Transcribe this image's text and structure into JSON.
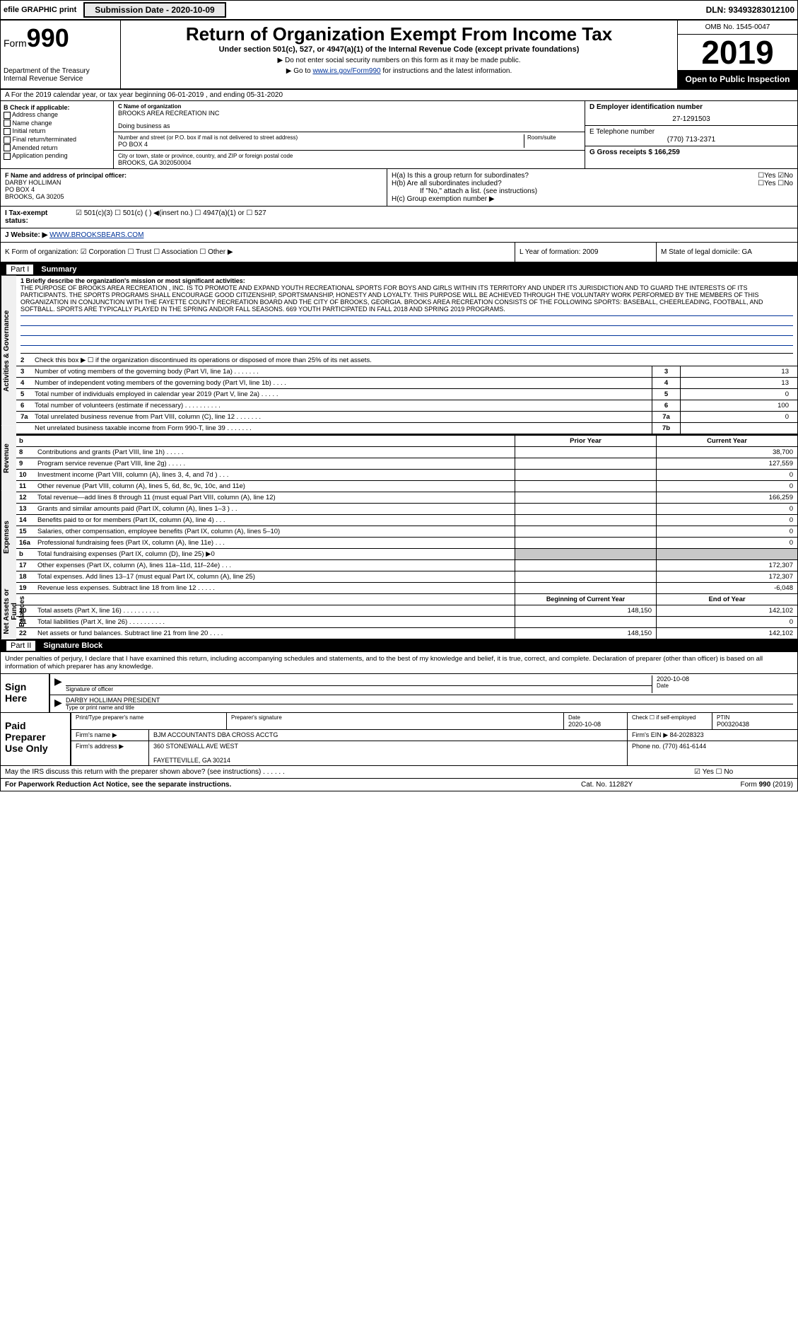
{
  "topbar": {
    "efile_text": "efile GRAPHIC print",
    "submission_btn": "Submission Date - 2020-10-09",
    "dln": "DLN: 93493283012100"
  },
  "header": {
    "form_prefix": "Form",
    "form_num": "990",
    "title": "Return of Organization Exempt From Income Tax",
    "subtitle": "Under section 501(c), 527, or 4947(a)(1) of the Internal Revenue Code (except private foundations)",
    "arrow1": "▶ Do not enter social security numbers on this form as it may be made public.",
    "arrow2_pre": "▶ Go to ",
    "arrow2_link": "www.irs.gov/Form990",
    "arrow2_post": " for instructions and the latest information.",
    "dept": "Department of the Treasury\nInternal Revenue Service",
    "omb": "OMB No. 1545-0047",
    "year": "2019",
    "open": "Open to Public Inspection"
  },
  "row_a": {
    "text": "A For the 2019 calendar year, or tax year beginning 06-01-2019    , and ending 05-31-2020"
  },
  "col_b": {
    "label": "B Check if applicable:",
    "items": [
      "Address change",
      "Name change",
      "Initial return",
      "Final return/terminated",
      "Amended return",
      "Application pending"
    ]
  },
  "col_c": {
    "name_lbl": "C Name of organization",
    "name": "BROOKS AREA RECREATION INC",
    "dba_lbl": "Doing business as",
    "dba": "",
    "addr_lbl": "Number and street (or P.O. box if mail is not delivered to street address)",
    "room_lbl": "Room/suite",
    "addr": "PO BOX 4",
    "city_lbl": "City or town, state or province, country, and ZIP or foreign postal code",
    "city": "BROOKS, GA  302050004"
  },
  "col_de": {
    "d_lbl": "D Employer identification number",
    "d_val": "27-1291503",
    "e_lbl": "E Telephone number",
    "e_val": "(770) 713-2371",
    "g_lbl": "G Gross receipts $ 166,259"
  },
  "row_f": {
    "f_lbl": "F  Name and address of principal officer:",
    "f_val": "DARBY HOLLIMAN\nPO BOX 4\nBROOKS, GA  30205",
    "ha_lbl": "H(a)  Is this a group return for subordinates?",
    "ha_yn": "☐Yes ☑No",
    "hb_lbl": "H(b)  Are all subordinates included?",
    "hb_yn": "☐Yes ☐No",
    "hb_note": "If \"No,\" attach a list. (see instructions)",
    "hc_lbl": "H(c)   Group exemption number ▶"
  },
  "row_i": {
    "lbl": "I   Tax-exempt status:",
    "opts": "☑  501(c)(3)    ☐   501(c) (   ) ◀(insert no.)    ☐  4947(a)(1) or   ☐  527"
  },
  "row_j": {
    "lbl": "J   Website: ▶ ",
    "val": "WWW.BROOKSBEARS.COM"
  },
  "row_k": {
    "k_lbl": "K Form of organization:  ☑ Corporation  ☐ Trust  ☐ Association  ☐ Other ▶",
    "l_lbl": "L Year of formation: 2009",
    "m_lbl": "M State of legal domicile: GA"
  },
  "part1": {
    "num": "Part I",
    "title": "Summary"
  },
  "mission": {
    "lbl": "1  Briefly describe the organization's mission or most significant activities:",
    "text": "THE PURPOSE OF BROOKS AREA RECREATION , INC. IS TO PROMOTE AND EXPAND YOUTH RECREATIONAL SPORTS FOR BOYS AND GIRLS WITHIN ITS TERRITORY AND UNDER ITS JURISDICTION AND TO GUARD THE INTERESTS OF ITS PARTICIPANTS. THE SPORTS PROGRAMS SHALL ENCOURAGE GOOD CITIZENSHIP, SPORTSMANSHIP, HONESTY AND LOYALTY. THIS PURPOSE WILL BE ACHIEVED THROUGH THE VOLUNTARY WORK PERFORMED BY THE MEMBERS OF THIS ORGANIZATION IN CONJUNCTION WITH THE FAYETTE COUNTY RECREATION BOARD AND THE CITY OF BROOKS, GEORGIA. BROOKS AREA RECREATION CONSISTS OF THE FOLLOWING SPORTS: BASEBALL, CHEERLEADING, FOOTBALL, AND SOFTBALL. SPORTS ARE TYPICALLY PLAYED IN THE SPRING AND/OR FALL SEASONS. 669 YOUTH PARTICIPATED IN FALL 2018 AND SPRING 2019 PROGRAMS."
  },
  "gov_lines": [
    {
      "n": "2",
      "t": "Check this box ▶ ☐ if the organization discontinued its operations or disposed of more than 25% of its net assets.",
      "box": "",
      "val": ""
    },
    {
      "n": "3",
      "t": "Number of voting members of the governing body (Part VI, line 1a)  .    .    .    .    .    .    .",
      "box": "3",
      "val": "13"
    },
    {
      "n": "4",
      "t": "Number of independent voting members of the governing body (Part VI, line 1b)   .    .    .    .",
      "box": "4",
      "val": "13"
    },
    {
      "n": "5",
      "t": "Total number of individuals employed in calendar year 2019 (Part V, line 2a)   .    .    .    .    .",
      "box": "5",
      "val": "0"
    },
    {
      "n": "6",
      "t": "Total number of volunteers (estimate if necessary)   .    .    .    .    .    .    .    .    .    .",
      "box": "6",
      "val": "100"
    },
    {
      "n": "7a",
      "t": "Total unrelated business revenue from Part VIII, column (C), line 12  .    .    .    .    .    .    .",
      "box": "7a",
      "val": "0"
    },
    {
      "n": "",
      "t": "Net unrelated business taxable income from Form 990-T, line 39   .    .    .    .    .    .    .",
      "box": "7b",
      "val": ""
    }
  ],
  "col_headers": {
    "c1": "Prior Year",
    "c2": "Current Year"
  },
  "rev_lines": [
    {
      "n": "8",
      "t": "Contributions and grants (Part VIII, line 1h)   .    .    .    .    .",
      "c1": "",
      "c2": "38,700"
    },
    {
      "n": "9",
      "t": "Program service revenue (Part VIII, line 2g)   .    .    .    .    .",
      "c1": "",
      "c2": "127,559"
    },
    {
      "n": "10",
      "t": "Investment income (Part VIII, column (A), lines 3, 4, and 7d )   .    .    .",
      "c1": "",
      "c2": "0"
    },
    {
      "n": "11",
      "t": "Other revenue (Part VIII, column (A), lines 5, 6d, 8c, 9c, 10c, and 11e)",
      "c1": "",
      "c2": "0"
    },
    {
      "n": "12",
      "t": "Total revenue—add lines 8 through 11 (must equal Part VIII, column (A), line 12)",
      "c1": "",
      "c2": "166,259"
    }
  ],
  "exp_lines": [
    {
      "n": "13",
      "t": "Grants and similar amounts paid (Part IX, column (A), lines 1–3 )  .    .",
      "c1": "",
      "c2": "0"
    },
    {
      "n": "14",
      "t": "Benefits paid to or for members (Part IX, column (A), line 4)  .    .    .",
      "c1": "",
      "c2": "0"
    },
    {
      "n": "15",
      "t": "Salaries, other compensation, employee benefits (Part IX, column (A), lines 5–10)",
      "c1": "",
      "c2": "0"
    },
    {
      "n": "16a",
      "t": "Professional fundraising fees (Part IX, column (A), line 11e)   .    .    .",
      "c1": "",
      "c2": "0"
    },
    {
      "n": "b",
      "t": "Total fundraising expenses (Part IX, column (D), line 25) ▶0",
      "c1": "grey",
      "c2": "grey"
    },
    {
      "n": "17",
      "t": "Other expenses (Part IX, column (A), lines 11a–11d, 11f–24e)   .    .    .",
      "c1": "",
      "c2": "172,307"
    },
    {
      "n": "18",
      "t": "Total expenses. Add lines 13–17 (must equal Part IX, column (A), line 25)",
      "c1": "",
      "c2": "172,307"
    },
    {
      "n": "19",
      "t": "Revenue less expenses. Subtract line 18 from line 12  .    .    .    .    .",
      "c1": "",
      "c2": "-6,048"
    }
  ],
  "net_headers": {
    "c1": "Beginning of Current Year",
    "c2": "End of Year"
  },
  "net_lines": [
    {
      "n": "20",
      "t": "Total assets (Part X, line 16)  .    .    .    .    .    .    .    .    .    .",
      "c1": "148,150",
      "c2": "142,102"
    },
    {
      "n": "21",
      "t": "Total liabilities (Part X, line 26)  .    .    .    .    .    .    .    .    .    .",
      "c1": "",
      "c2": "0"
    },
    {
      "n": "22",
      "t": "Net assets or fund balances. Subtract line 21 from line 20  .    .    .    .",
      "c1": "148,150",
      "c2": "142,102"
    }
  ],
  "part2": {
    "num": "Part II",
    "title": "Signature Block"
  },
  "sig_penalty": "Under penalties of perjury, I declare that I have examined this return, including accompanying schedules and statements, and to the best of my knowledge and belief, it is true, correct, and complete. Declaration of preparer (other than officer) is based on all information of which preparer has any knowledge.",
  "sign_here": "Sign Here",
  "sig_officer_lbl": "Signature of officer",
  "sig_date_lbl": "Date",
  "sig_date": "2020-10-08",
  "sig_name": "DARBY HOLLIMAN  PRESIDENT",
  "sig_name_lbl": "Type or print name and title",
  "paid_prep": "Paid Preparer Use Only",
  "prep": {
    "name_lbl": "Print/Type preparer's name",
    "sig_lbl": "Preparer's signature",
    "date_lbl": "Date",
    "date": "2020-10-08",
    "check_lbl": "Check ☐ if self-employed",
    "ptin_lbl": "PTIN",
    "ptin": "P00320438",
    "firm_name_lbl": "Firm's name    ▶",
    "firm_name": "BJM ACCOUNTANTS DBA CROSS ACCTG",
    "firm_ein_lbl": "Firm's EIN ▶ 84-2028323",
    "firm_addr_lbl": "Firm's address ▶",
    "firm_addr": "360 STONEWALL AVE WEST\n\nFAYETTEVILLE, GA  30214",
    "phone_lbl": "Phone no. (770) 461-6144"
  },
  "discuss": "May the IRS discuss this return with the preparer shown above? (see instructions)   .    .    .    .    .    .",
  "discuss_yn": "☑ Yes  ☐ No",
  "paperwork": "For Paperwork Reduction Act Notice, see the separate instructions.",
  "catno": "Cat. No. 11282Y",
  "formno": "Form 990 (2019)",
  "vtabs": {
    "gov": "Activities & Governance",
    "rev": "Revenue",
    "exp": "Expenses",
    "net": "Net Assets or Fund Balances"
  }
}
